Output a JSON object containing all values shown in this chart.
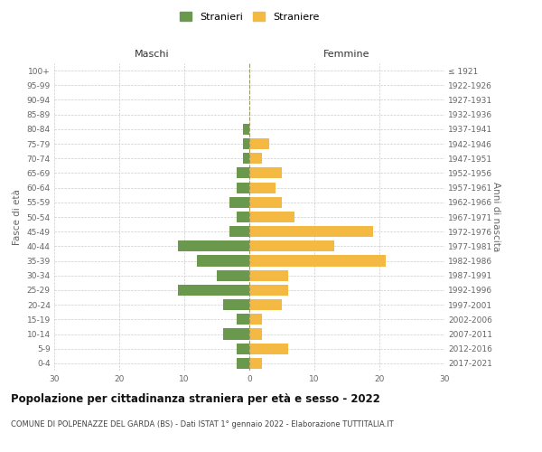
{
  "age_groups": [
    "0-4",
    "5-9",
    "10-14",
    "15-19",
    "20-24",
    "25-29",
    "30-34",
    "35-39",
    "40-44",
    "45-49",
    "50-54",
    "55-59",
    "60-64",
    "65-69",
    "70-74",
    "75-79",
    "80-84",
    "85-89",
    "90-94",
    "95-99",
    "100+"
  ],
  "birth_years": [
    "2017-2021",
    "2012-2016",
    "2007-2011",
    "2002-2006",
    "1997-2001",
    "1992-1996",
    "1987-1991",
    "1982-1986",
    "1977-1981",
    "1972-1976",
    "1967-1971",
    "1962-1966",
    "1957-1961",
    "1952-1956",
    "1947-1951",
    "1942-1946",
    "1937-1941",
    "1932-1936",
    "1927-1931",
    "1922-1926",
    "≤ 1921"
  ],
  "males": [
    2,
    2,
    4,
    2,
    4,
    11,
    5,
    8,
    11,
    3,
    2,
    3,
    2,
    2,
    1,
    1,
    1,
    0,
    0,
    0,
    0
  ],
  "females": [
    2,
    6,
    2,
    2,
    5,
    6,
    6,
    21,
    13,
    19,
    7,
    5,
    4,
    5,
    2,
    3,
    0,
    0,
    0,
    0,
    0
  ],
  "male_color": "#6a994e",
  "female_color": "#f4b942",
  "male_label": "Stranieri",
  "female_label": "Straniere",
  "xlim": 30,
  "title": "Popolazione per cittadinanza straniera per età e sesso - 2022",
  "subtitle": "COMUNE DI POLPENAZZE DEL GARDA (BS) - Dati ISTAT 1° gennaio 2022 - Elaborazione TUTTITALIA.IT",
  "ylabel_left": "Fasce di età",
  "ylabel_right": "Anni di nascita",
  "header_left": "Maschi",
  "header_right": "Femmine",
  "bg_color": "#ffffff",
  "grid_color": "#cccccc",
  "axis_color": "#666666",
  "centerline_color": "#999966"
}
